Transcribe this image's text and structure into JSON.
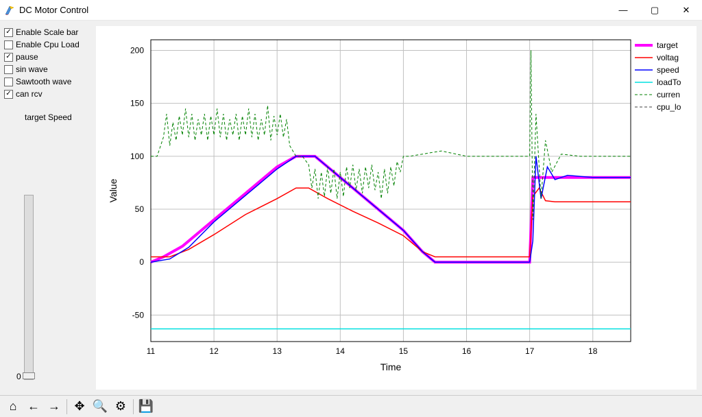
{
  "window": {
    "title": "DC Motor Control",
    "buttons": {
      "minimize": "—",
      "maximize": "▢",
      "close": "✕"
    }
  },
  "sidebar": {
    "checks": [
      {
        "label": "Enable Scale bar",
        "checked": true
      },
      {
        "label": "Enable Cpu Load",
        "checked": false
      },
      {
        "label": "pause",
        "checked": true
      },
      {
        "label": "sin wave",
        "checked": false
      },
      {
        "label": "Sawtooth wave",
        "checked": false
      },
      {
        "label": "can rcv",
        "checked": true
      }
    ],
    "slider": {
      "label": "target Speed",
      "value": 0
    }
  },
  "toolbar": {
    "buttons": [
      {
        "name": "home-icon",
        "glyph": "⌂"
      },
      {
        "name": "back-icon",
        "glyph": "←"
      },
      {
        "name": "forward-icon",
        "glyph": "→"
      },
      {
        "sep": true
      },
      {
        "name": "pan-icon",
        "glyph": "✥"
      },
      {
        "name": "zoom-icon",
        "glyph": "🔍"
      },
      {
        "name": "configure-icon",
        "glyph": "⚙"
      },
      {
        "sep": true
      },
      {
        "name": "save-icon",
        "glyph": "💾"
      }
    ]
  },
  "chart": {
    "type": "line",
    "xlabel": "Time",
    "ylabel": "Value",
    "xlim": [
      11,
      18.6
    ],
    "ylim": [
      -75,
      210
    ],
    "xticks": [
      11,
      12,
      13,
      14,
      15,
      16,
      17,
      18
    ],
    "yticks": [
      -50,
      0,
      50,
      100,
      150,
      200
    ],
    "label_fontsize": 14,
    "tick_fontsize": 12,
    "background_color": "#ffffff",
    "grid_color": "#c0c0c0",
    "axis_color": "#000000",
    "legend": {
      "labels": [
        "target",
        "voltag",
        "speed",
        "loadTo",
        "curren",
        "cpu_lo"
      ],
      "colors": [
        "#ff00ff",
        "#ff0000",
        "#0000ff",
        "#00e0e0",
        "#008000",
        "#404040"
      ],
      "widths": [
        4,
        1.5,
        1.5,
        1.5,
        1,
        1
      ],
      "dashes": [
        "",
        "",
        "",
        "",
        "4 3",
        "4 3"
      ]
    },
    "series": [
      {
        "name": "target",
        "color": "#ff00ff",
        "width": 4,
        "dash": "",
        "points": [
          [
            11.0,
            0
          ],
          [
            11.2,
            5
          ],
          [
            11.5,
            15
          ],
          [
            12.0,
            40
          ],
          [
            12.5,
            65
          ],
          [
            13.0,
            90
          ],
          [
            13.3,
            100
          ],
          [
            13.6,
            100
          ],
          [
            14.0,
            80
          ],
          [
            14.5,
            55
          ],
          [
            15.0,
            30
          ],
          [
            15.3,
            10
          ],
          [
            15.5,
            0
          ],
          [
            16.0,
            0
          ],
          [
            16.5,
            0
          ],
          [
            17.0,
            0
          ],
          [
            17.05,
            80
          ],
          [
            17.3,
            80
          ],
          [
            18.0,
            80
          ],
          [
            18.6,
            80
          ]
        ]
      },
      {
        "name": "voltage",
        "color": "#ff0000",
        "width": 1.5,
        "dash": "",
        "points": [
          [
            11.0,
            5
          ],
          [
            11.3,
            5
          ],
          [
            11.6,
            12
          ],
          [
            12.0,
            26
          ],
          [
            12.5,
            45
          ],
          [
            13.0,
            60
          ],
          [
            13.3,
            70
          ],
          [
            13.5,
            70
          ],
          [
            13.8,
            60
          ],
          [
            14.2,
            48
          ],
          [
            14.6,
            37
          ],
          [
            15.0,
            25
          ],
          [
            15.3,
            10
          ],
          [
            15.5,
            5
          ],
          [
            16.0,
            5
          ],
          [
            16.5,
            5
          ],
          [
            17.0,
            5
          ],
          [
            17.05,
            62
          ],
          [
            17.15,
            70
          ],
          [
            17.25,
            58
          ],
          [
            17.4,
            57
          ],
          [
            18.0,
            57
          ],
          [
            18.6,
            57
          ]
        ]
      },
      {
        "name": "speed",
        "color": "#0000ff",
        "width": 1.5,
        "dash": "",
        "points": [
          [
            11.0,
            0
          ],
          [
            11.3,
            3
          ],
          [
            11.6,
            14
          ],
          [
            12.0,
            38
          ],
          [
            12.5,
            63
          ],
          [
            13.0,
            88
          ],
          [
            13.3,
            100
          ],
          [
            13.6,
            100
          ],
          [
            14.0,
            80
          ],
          [
            14.5,
            55
          ],
          [
            15.0,
            30
          ],
          [
            15.3,
            10
          ],
          [
            15.5,
            0
          ],
          [
            16.0,
            0
          ],
          [
            16.5,
            0
          ],
          [
            17.0,
            0
          ],
          [
            17.05,
            20
          ],
          [
            17.1,
            100
          ],
          [
            17.18,
            60
          ],
          [
            17.28,
            90
          ],
          [
            17.4,
            78
          ],
          [
            17.6,
            82
          ],
          [
            18.0,
            80
          ],
          [
            18.6,
            80
          ]
        ]
      },
      {
        "name": "loadTorque",
        "color": "#00e0e0",
        "width": 1.5,
        "dash": "",
        "points": [
          [
            11.0,
            -63
          ],
          [
            18.6,
            -63
          ]
        ]
      },
      {
        "name": "current",
        "color": "#008000",
        "width": 1,
        "dash": "4 3",
        "points": [
          [
            11.0,
            100
          ],
          [
            11.1,
            100
          ],
          [
            11.2,
            118
          ],
          [
            11.25,
            140
          ],
          [
            11.3,
            110
          ],
          [
            11.35,
            132
          ],
          [
            11.4,
            115
          ],
          [
            11.45,
            138
          ],
          [
            11.5,
            120
          ],
          [
            11.55,
            145
          ],
          [
            11.6,
            118
          ],
          [
            11.65,
            140
          ],
          [
            11.7,
            115
          ],
          [
            11.75,
            135
          ],
          [
            11.8,
            120
          ],
          [
            11.85,
            140
          ],
          [
            11.9,
            115
          ],
          [
            11.95,
            138
          ],
          [
            12.0,
            120
          ],
          [
            12.05,
            145
          ],
          [
            12.1,
            118
          ],
          [
            12.15,
            140
          ],
          [
            12.2,
            115
          ],
          [
            12.25,
            135
          ],
          [
            12.3,
            120
          ],
          [
            12.35,
            140
          ],
          [
            12.4,
            115
          ],
          [
            12.45,
            138
          ],
          [
            12.5,
            120
          ],
          [
            12.55,
            145
          ],
          [
            12.6,
            118
          ],
          [
            12.65,
            140
          ],
          [
            12.7,
            115
          ],
          [
            12.75,
            135
          ],
          [
            12.8,
            120
          ],
          [
            12.85,
            148
          ],
          [
            12.9,
            115
          ],
          [
            12.95,
            138
          ],
          [
            13.0,
            120
          ],
          [
            13.05,
            140
          ],
          [
            13.1,
            118
          ],
          [
            13.15,
            135
          ],
          [
            13.2,
            110
          ],
          [
            13.3,
            100
          ],
          [
            13.4,
            100
          ],
          [
            13.5,
            92
          ],
          [
            13.55,
            70
          ],
          [
            13.6,
            88
          ],
          [
            13.65,
            60
          ],
          [
            13.7,
            85
          ],
          [
            13.75,
            62
          ],
          [
            13.8,
            90
          ],
          [
            13.85,
            65
          ],
          [
            13.9,
            88
          ],
          [
            13.95,
            60
          ],
          [
            14.0,
            85
          ],
          [
            14.05,
            62
          ],
          [
            14.1,
            90
          ],
          [
            14.15,
            70
          ],
          [
            14.2,
            92
          ],
          [
            14.25,
            68
          ],
          [
            14.3,
            88
          ],
          [
            14.35,
            65
          ],
          [
            14.4,
            90
          ],
          [
            14.45,
            70
          ],
          [
            14.5,
            92
          ],
          [
            14.55,
            68
          ],
          [
            14.6,
            85
          ],
          [
            14.65,
            60
          ],
          [
            14.7,
            88
          ],
          [
            14.75,
            65
          ],
          [
            14.8,
            90
          ],
          [
            14.85,
            72
          ],
          [
            14.9,
            95
          ],
          [
            14.95,
            85
          ],
          [
            15.0,
            100
          ],
          [
            15.1,
            100
          ],
          [
            15.3,
            102
          ],
          [
            15.6,
            105
          ],
          [
            16.0,
            100
          ],
          [
            16.5,
            100
          ],
          [
            17.0,
            100
          ],
          [
            17.02,
            200
          ],
          [
            17.05,
            40
          ],
          [
            17.1,
            140
          ],
          [
            17.18,
            60
          ],
          [
            17.25,
            115
          ],
          [
            17.35,
            85
          ],
          [
            17.5,
            102
          ],
          [
            17.8,
            100
          ],
          [
            18.2,
            100
          ],
          [
            18.6,
            100
          ]
        ]
      },
      {
        "name": "cpu_load",
        "color": "#404040",
        "width": 1,
        "dash": "4 3",
        "points": []
      }
    ]
  }
}
